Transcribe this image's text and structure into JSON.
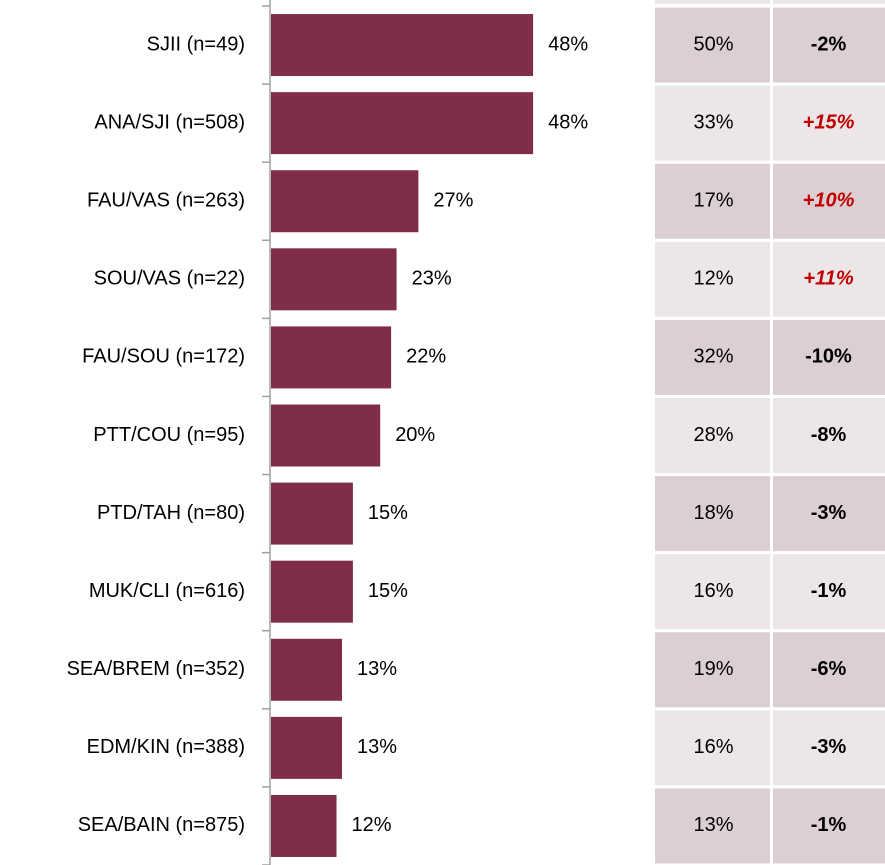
{
  "chart_data": {
    "type": "bar",
    "orientation": "horizontal",
    "categories": [
      "SJII (n=49)",
      "ANA/SJI (n=508)",
      "FAU/VAS (n=263)",
      "SOU/VAS (n=22)",
      "FAU/SOU (n=172)",
      "PTT/COU (n=95)",
      "PTD/TAH (n=80)",
      "MUK/CLI (n=616)",
      "SEA/BREM (n=352)",
      "EDM/KIN (n=388)",
      "SEA/BAIN (n=875)"
    ],
    "values": [
      48,
      48,
      27,
      23,
      22,
      20,
      15,
      15,
      13,
      13,
      12
    ],
    "value_labels": [
      "48%",
      "48%",
      "27%",
      "23%",
      "22%",
      "20%",
      "15%",
      "15%",
      "13%",
      "13%",
      "12%"
    ],
    "color": "#7f2d4a",
    "xlim": [
      0,
      100
    ],
    "comparison": {
      "values": [
        50,
        33,
        17,
        12,
        32,
        28,
        18,
        16,
        19,
        16,
        13
      ],
      "value_labels": [
        "50%",
        "33%",
        "17%",
        "12%",
        "32%",
        "28%",
        "18%",
        "16%",
        "19%",
        "16%",
        "13%"
      ],
      "change": [
        -2,
        15,
        10,
        11,
        -10,
        -8,
        -3,
        -1,
        -6,
        -3,
        -1
      ],
      "change_labels": [
        "-2%",
        "+15%",
        "+10%",
        "+11%",
        "-10%",
        "-8%",
        "-3%",
        "-1%",
        "-6%",
        "-3%",
        "-1%"
      ],
      "positive_color": "#c00000",
      "negative_color": "#000000",
      "cell_colors": [
        "#dccfd4",
        "#ede6e9"
      ]
    }
  }
}
